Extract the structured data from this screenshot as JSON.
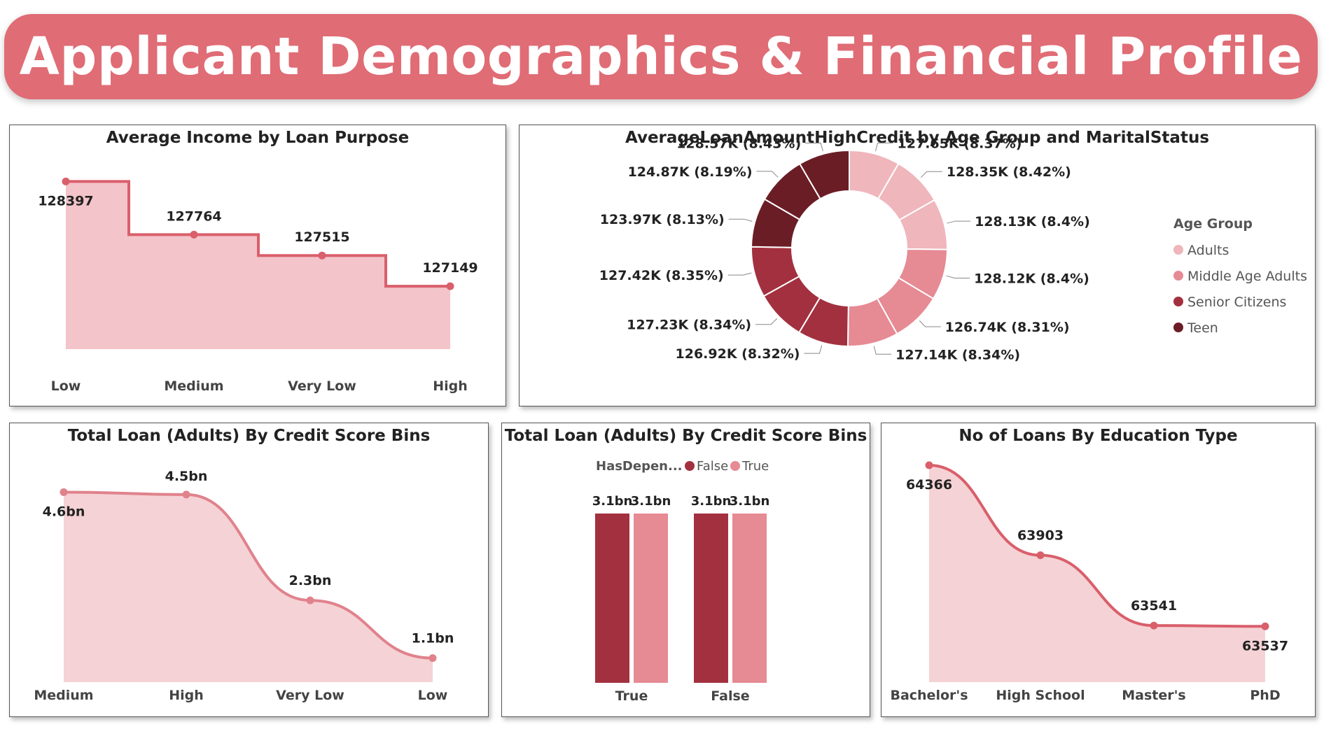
{
  "dashboard": {
    "title": "Applicant Demographics & Financial Profile"
  },
  "colors": {
    "banner": "#e06c75",
    "accent": "#e06c75",
    "line_dark": "#d95f6b",
    "line_pink": "#e0828c",
    "fill_light": "#f3c4c9",
    "fill_lighter": "#f5d2d5",
    "light_pink": "#efb6bc",
    "mid_pink": "#e68a94",
    "dark_red": "#a3303f",
    "maroon": "#6b1d25"
  },
  "chart_data": [
    {
      "type": "area",
      "title": "Average Income by Loan Purpose",
      "categories": [
        "Low",
        "Medium",
        "Very Low",
        "High"
      ],
      "values": [
        128397,
        127764,
        127515,
        127149
      ],
      "labels": [
        "128397",
        "127764",
        "127515",
        "127149"
      ],
      "ylim": [
        126400,
        128600
      ],
      "step": true
    },
    {
      "type": "pie",
      "title": "AverageLoanAmountHighCredit by Age Group and MaritalStatus",
      "legend_title": "Age Group",
      "legend": [
        "Adults",
        "Middle Age Adults",
        "Senior Citizens",
        "Teen"
      ],
      "legend_placement": "right",
      "slices": [
        {
          "group": "Adults",
          "value": 127.65,
          "label": "127.65K (8.37%)"
        },
        {
          "group": "Adults",
          "value": 128.35,
          "label": "128.35K (8.42%)"
        },
        {
          "group": "Adults",
          "value": 128.13,
          "label": "128.13K (8.4%)"
        },
        {
          "group": "Middle Age Adults",
          "value": 128.12,
          "label": "128.12K (8.4%)"
        },
        {
          "group": "Middle Age Adults",
          "value": 126.74,
          "label": "126.74K (8.31%)"
        },
        {
          "group": "Middle Age Adults",
          "value": 127.14,
          "label": "127.14K (8.34%)"
        },
        {
          "group": "Senior Citizens",
          "value": 126.92,
          "label": "126.92K (8.32%)"
        },
        {
          "group": "Senior Citizens",
          "value": 127.23,
          "label": "127.23K (8.34%)"
        },
        {
          "group": "Senior Citizens",
          "value": 127.42,
          "label": "127.42K (8.35%)"
        },
        {
          "group": "Teen",
          "value": 123.97,
          "label": "123.97K (8.13%)"
        },
        {
          "group": "Teen",
          "value": 124.87,
          "label": "124.87K (8.19%)"
        },
        {
          "group": "Teen",
          "value": 128.57,
          "label": "128.57K (8.43%)"
        }
      ]
    },
    {
      "type": "area",
      "title": "Total Loan (Adults) By Credit Score Bins",
      "categories": [
        "Medium",
        "High",
        "Very Low",
        "Low"
      ],
      "values": [
        4.55,
        4.5,
        2.3,
        1.1
      ],
      "labels": [
        "4.6bn",
        "4.5bn",
        "2.3bn",
        "1.1bn"
      ],
      "ylim": [
        0.6,
        5.4
      ],
      "smooth": true
    },
    {
      "type": "bar",
      "title": "Total Loan (Adults) By Credit Score Bins",
      "legend_title": "HasDepen...",
      "legend": [
        "False",
        "True"
      ],
      "legend_placement": "top-left",
      "categories": [
        "True",
        "False"
      ],
      "series": [
        {
          "name": "False",
          "values": [
            3.1,
            3.1
          ],
          "labels": [
            "3.1bn",
            "3.1bn"
          ]
        },
        {
          "name": "True",
          "values": [
            3.1,
            3.1
          ],
          "labels": [
            "3.1bn",
            "3.1bn"
          ]
        }
      ],
      "ylim": [
        0,
        3.1
      ]
    },
    {
      "type": "area",
      "title": "No of Loans By Education Type",
      "categories": [
        "Bachelor's",
        "High School",
        "Master's",
        "PhD"
      ],
      "values": [
        64366,
        63903,
        63541,
        63537
      ],
      "labels": [
        "64366",
        "63903",
        "63541",
        "63537"
      ],
      "ylim": [
        63250,
        64366
      ],
      "smooth": true
    }
  ]
}
